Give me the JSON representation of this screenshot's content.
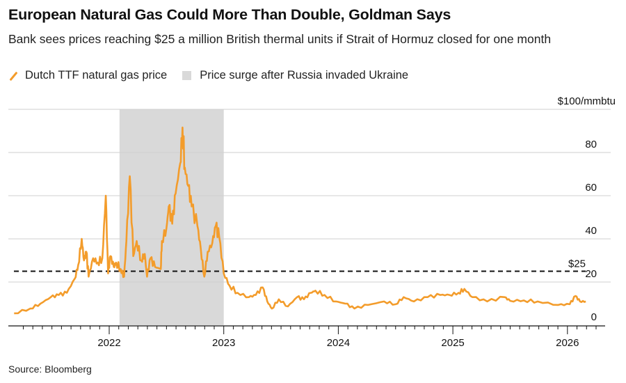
{
  "chart_data": {
    "type": "line",
    "title": "European Natural Gas Could More Than Double, Goldman Says",
    "subtitle": "Bank sees prices reaching $25 a million British thermal units if Strait of Hormuz closed for one month",
    "unit_label": "$100/mmbtu",
    "legend": [
      {
        "label": "Dutch TTF natural gas price",
        "type": "line",
        "color": "#f39c2b"
      },
      {
        "label": "Price surge after Russia invaded Ukraine",
        "type": "box",
        "color": "#d9d9d9"
      }
    ],
    "legend_placement": "top-left",
    "y_ticks": [
      0,
      20,
      40,
      60,
      80
    ],
    "ylim": [
      0,
      100
    ],
    "x_ticks": [
      "2022",
      "2023",
      "2024",
      "2025",
      "2026"
    ],
    "xlim": [
      2021.1,
      2026.4
    ],
    "grid": true,
    "shaded_region": {
      "from": 2022.09,
      "to": 2023.0
    },
    "reference_line": {
      "value": 25,
      "label": "$25"
    },
    "series": [
      {
        "name": "Dutch TTF natural gas price",
        "points": [
          [
            2021.17,
            5.5
          ],
          [
            2021.31,
            7.7
          ],
          [
            2021.4,
            10
          ],
          [
            2021.49,
            13
          ],
          [
            2021.56,
            14
          ],
          [
            2021.63,
            15
          ],
          [
            2021.7,
            21.6
          ],
          [
            2021.73,
            28
          ],
          [
            2021.76,
            40
          ],
          [
            2021.78,
            30
          ],
          [
            2021.8,
            34
          ],
          [
            2021.82,
            22.5
          ],
          [
            2021.86,
            31
          ],
          [
            2021.9,
            29
          ],
          [
            2021.94,
            31
          ],
          [
            2021.97,
            60
          ],
          [
            2021.99,
            24
          ],
          [
            2022.01,
            32
          ],
          [
            2022.04,
            27
          ],
          [
            2022.06,
            29
          ],
          [
            2022.1,
            26
          ],
          [
            2022.13,
            22.5
          ],
          [
            2022.15,
            39
          ],
          [
            2022.18,
            69
          ],
          [
            2022.21,
            32
          ],
          [
            2022.24,
            39
          ],
          [
            2022.28,
            30
          ],
          [
            2022.31,
            33
          ],
          [
            2022.33,
            22.5
          ],
          [
            2022.36,
            31
          ],
          [
            2022.4,
            27
          ],
          [
            2022.45,
            26
          ],
          [
            2022.46,
            39
          ],
          [
            2022.5,
            45
          ],
          [
            2022.52,
            55
          ],
          [
            2022.55,
            47
          ],
          [
            2022.58,
            61
          ],
          [
            2022.62,
            75
          ],
          [
            2022.64,
            91.6
          ],
          [
            2022.66,
            73
          ],
          [
            2022.69,
            64.5
          ],
          [
            2022.72,
            55
          ],
          [
            2022.77,
            46
          ],
          [
            2022.8,
            35
          ],
          [
            2022.83,
            22.5
          ],
          [
            2022.86,
            34
          ],
          [
            2022.9,
            38
          ],
          [
            2022.93,
            46
          ],
          [
            2022.96,
            41
          ],
          [
            2023.0,
            24
          ],
          [
            2023.05,
            18.4
          ],
          [
            2023.12,
            15
          ],
          [
            2023.22,
            13
          ],
          [
            2023.28,
            14
          ],
          [
            2023.34,
            17.5
          ],
          [
            2023.38,
            11
          ],
          [
            2023.42,
            7.7
          ],
          [
            2023.48,
            12
          ],
          [
            2023.56,
            8.7
          ],
          [
            2023.64,
            13
          ],
          [
            2023.7,
            12
          ],
          [
            2023.76,
            15
          ],
          [
            2023.8,
            16
          ],
          [
            2023.88,
            14
          ],
          [
            2023.98,
            11
          ],
          [
            2024.06,
            10
          ],
          [
            2024.14,
            7.7
          ],
          [
            2024.26,
            9.4
          ],
          [
            2024.4,
            11
          ],
          [
            2024.5,
            9.7
          ],
          [
            2024.57,
            13
          ],
          [
            2024.66,
            11
          ],
          [
            2024.78,
            13
          ],
          [
            2024.89,
            14
          ],
          [
            2024.97,
            14
          ],
          [
            2025.05,
            15
          ],
          [
            2025.1,
            16.8
          ],
          [
            2025.17,
            13
          ],
          [
            2025.3,
            11
          ],
          [
            2025.45,
            13
          ],
          [
            2025.5,
            11.3
          ],
          [
            2025.62,
            11.5
          ],
          [
            2025.74,
            11
          ],
          [
            2025.92,
            9.4
          ],
          [
            2026.02,
            9.7
          ],
          [
            2026.07,
            13.5
          ],
          [
            2026.11,
            11
          ],
          [
            2026.16,
            11
          ]
        ]
      }
    ],
    "source": "Source: Bloomberg"
  }
}
